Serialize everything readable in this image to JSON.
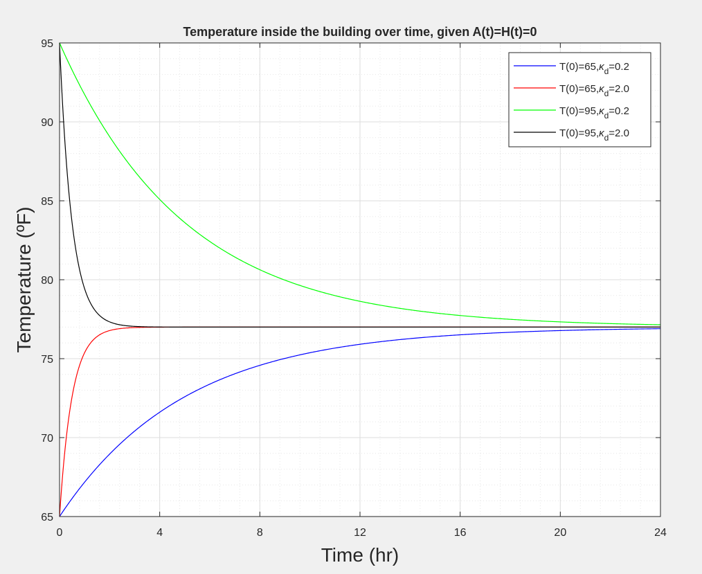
{
  "chart_data": {
    "type": "line",
    "title": "Temperature inside the building over time, given A(t)=H(t)=0",
    "xlabel": "Time (hr)",
    "ylabel": "Temperature (ºF)",
    "xlim": [
      0,
      24
    ],
    "ylim": [
      65,
      95
    ],
    "xticks": [
      "0",
      "4",
      "8",
      "12",
      "16",
      "20",
      "24"
    ],
    "yticks": [
      "65",
      "70",
      "75",
      "80",
      "85",
      "90",
      "95"
    ],
    "grid": true,
    "minor_grid": true,
    "legend_position": "top-right",
    "equilibrium_temperature": 77,
    "series": [
      {
        "name": "T(0)=65,κd=0.2",
        "label_prefix": "T(0)=65,",
        "kappa_symbol": "κ",
        "kappa_sub": "d",
        "label_suffix": "=0.2",
        "color": "#0000ff",
        "T0": 65,
        "kappa_d": 0.2
      },
      {
        "name": "T(0)=65,κd=2.0",
        "label_prefix": "T(0)=65,",
        "kappa_symbol": "κ",
        "kappa_sub": "d",
        "label_suffix": "=2.0",
        "color": "#ff0000",
        "T0": 65,
        "kappa_d": 2.0
      },
      {
        "name": "T(0)=95,κd=0.2",
        "label_prefix": "T(0)=95,",
        "kappa_symbol": "κ",
        "kappa_sub": "d",
        "label_suffix": "=0.2",
        "color": "#00ff00",
        "T0": 95,
        "kappa_d": 0.2
      },
      {
        "name": "T(0)=95,κd=2.0",
        "label_prefix": "T(0)=95,",
        "kappa_symbol": "κ",
        "kappa_sub": "d",
        "label_suffix": "=2.0",
        "color": "#000000",
        "T0": 95,
        "kappa_d": 2.0
      }
    ]
  }
}
